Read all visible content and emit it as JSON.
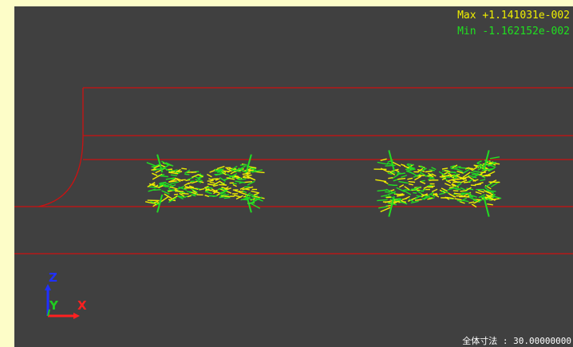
{
  "viewport": {
    "background": "#404040",
    "page_background": "#fdfdc8"
  },
  "legend": {
    "max_text": "Max +1.141031e-002",
    "min_text": "Min -1.162152e-002",
    "max_color": "#f0f000",
    "min_color": "#20e020"
  },
  "scale": {
    "text": "全体寸法 : 30.00000000",
    "color": "#ffffff"
  },
  "geometry": {
    "edge_color": "#cc1111"
  },
  "vectors": {
    "primary_color": "#eeee00",
    "secondary_color": "#22dd22"
  },
  "triad": {
    "z_label": "Z",
    "y_label": "Y",
    "x_label": "X",
    "z_color": "#2030ff",
    "y_color": "#20cc20",
    "x_color": "#ff2020"
  }
}
